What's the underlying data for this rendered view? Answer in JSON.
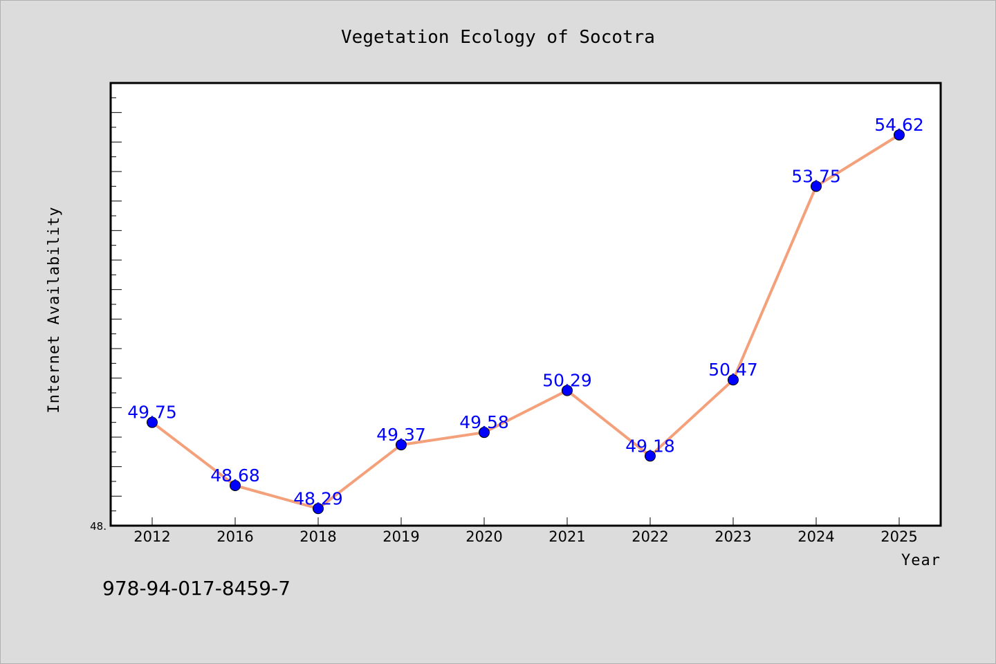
{
  "chart_data": {
    "type": "line",
    "title": "Vegetation Ecology of Socotra",
    "xlabel": "Year",
    "ylabel": "Internet Availability",
    "categories": [
      "2012",
      "2016",
      "2018",
      "2019",
      "2020",
      "2021",
      "2022",
      "2023",
      "2024",
      "2025"
    ],
    "series": [
      {
        "values": [
          49.75,
          48.68,
          48.29,
          49.37,
          49.58,
          50.29,
          49.18,
          50.47,
          53.75,
          54.62
        ],
        "line_color": "#f4a07a",
        "marker_color": "#0000ff"
      }
    ],
    "data_labels": [
      "49.75",
      "48.68",
      "48.29",
      "49.37",
      "49.58",
      "50.29",
      "49.18",
      "50.47",
      "53.75",
      "54.62"
    ],
    "ylim": [
      48.0,
      55.5
    ],
    "y_min_label": "48.",
    "grid": false,
    "legend": "none"
  },
  "footer": {
    "isbn": "978-94-017-8459-7"
  }
}
